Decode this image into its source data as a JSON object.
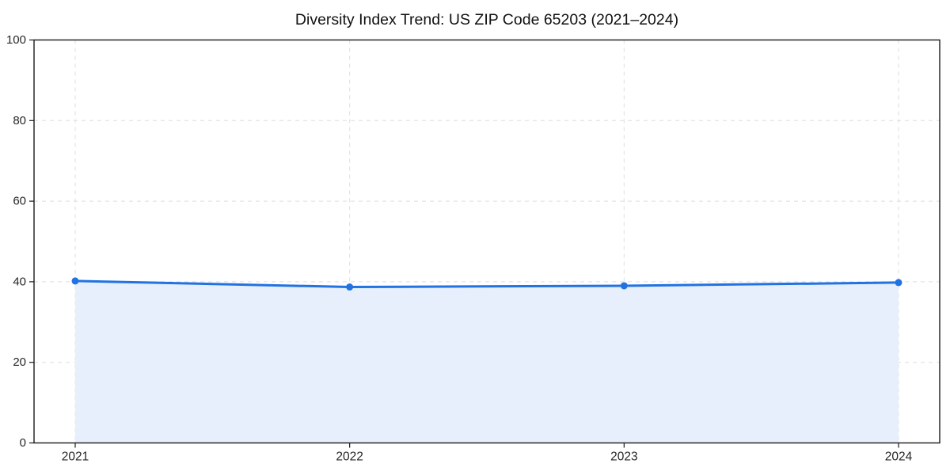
{
  "chart_data": {
    "type": "line",
    "title": "Diversity Index Trend: US ZIP Code 65203 (2021–2024)",
    "x": [
      "2021",
      "2022",
      "2023",
      "2024"
    ],
    "values": [
      40.2,
      38.7,
      39.0,
      39.8
    ],
    "xlabel": "",
    "ylabel": "",
    "ylim": [
      0,
      100
    ],
    "yticks": [
      0,
      20,
      40,
      60,
      80,
      100
    ],
    "xticks": [
      "2021",
      "2022",
      "2023",
      "2024"
    ],
    "grid": true,
    "grid_style": "dashed",
    "legend": "none",
    "area_fill": true,
    "marker": "circle",
    "colors": {
      "line": "#2272e2",
      "marker": "#2272e2",
      "fill": "#e7effc",
      "grid": "#dedede",
      "spine": "#1a1a1a",
      "tick_label": "#262626",
      "title": "#111111",
      "background": "#ffffff"
    }
  }
}
